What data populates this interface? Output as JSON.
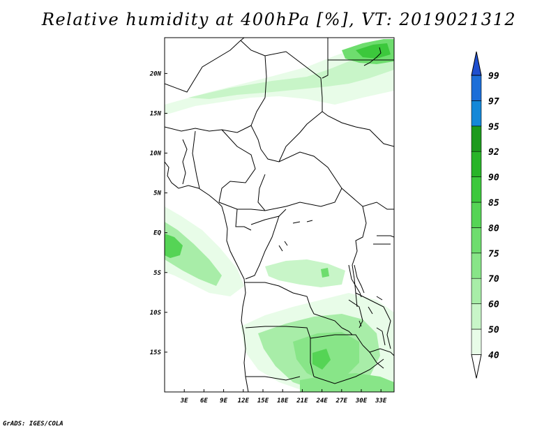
{
  "title": "Relative humidity at 400hPa [%], VT: 2019021312",
  "credit": "GrADS: IGES/COLA",
  "map": {
    "lon_range": [
      0,
      35
    ],
    "lat_range": [
      -20,
      24.5
    ],
    "x_ticks": [
      "3E",
      "6E",
      "9E",
      "12E",
      "15E",
      "18E",
      "21E",
      "24E",
      "27E",
      "30E",
      "33E"
    ],
    "y_ticks": [
      "20N",
      "15N",
      "10N",
      "5N",
      "EQ",
      "5S",
      "10S",
      "15S"
    ],
    "land_color": "#ffffff",
    "border_color": "#000000"
  },
  "colorbar": {
    "levels": [
      "40",
      "50",
      "60",
      "70",
      "75",
      "80",
      "85",
      "90",
      "92",
      "95",
      "97",
      "99"
    ],
    "colors": [
      "#e8fce8",
      "#c8f5c8",
      "#a8eda8",
      "#88e588",
      "#6edd6e",
      "#55d455",
      "#3cc83c",
      "#28b428",
      "#1c9a1c",
      "#1488d8",
      "#1c6ed8",
      "#1f4fcf"
    ],
    "extend_both": true
  },
  "humidity_regions": [
    {
      "name": "north-band-upper",
      "level": "50"
    },
    {
      "name": "north-band-lower",
      "level": "50"
    },
    {
      "name": "northeast-core",
      "level": "75"
    },
    {
      "name": "gulf-of-guinea-plume",
      "level": "60"
    },
    {
      "name": "congo-basin-patch",
      "level": "60"
    },
    {
      "name": "southern-africa-patch",
      "level": "70"
    }
  ]
}
